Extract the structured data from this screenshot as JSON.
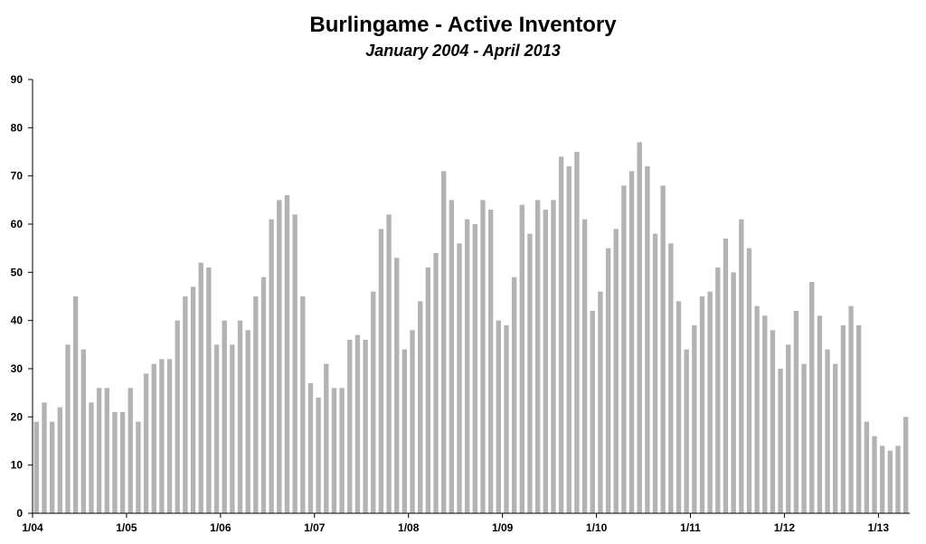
{
  "chart_data": {
    "type": "bar",
    "title": "Burlingame - Active Inventory",
    "subtitle": "January 2004 - April 2013",
    "xlabel": "",
    "ylabel": "",
    "ylim": [
      0,
      90
    ],
    "yticks": [
      0,
      10,
      20,
      30,
      40,
      50,
      60,
      70,
      80,
      90
    ],
    "xtick_labels": [
      "1/04",
      "1/05",
      "1/06",
      "1/07",
      "1/08",
      "1/09",
      "1/10",
      "1/11",
      "1/12",
      "1/13"
    ],
    "bar_color": "#b3b3b3",
    "grid": false,
    "legend": "none",
    "categories": [
      "1/04",
      "2/04",
      "3/04",
      "4/04",
      "5/04",
      "6/04",
      "7/04",
      "8/04",
      "9/04",
      "10/04",
      "11/04",
      "12/04",
      "1/05",
      "2/05",
      "3/05",
      "4/05",
      "5/05",
      "6/05",
      "7/05",
      "8/05",
      "9/05",
      "10/05",
      "11/05",
      "12/05",
      "1/06",
      "2/06",
      "3/06",
      "4/06",
      "5/06",
      "6/06",
      "7/06",
      "8/06",
      "9/06",
      "10/06",
      "11/06",
      "12/06",
      "1/07",
      "2/07",
      "3/07",
      "4/07",
      "5/07",
      "6/07",
      "7/07",
      "8/07",
      "9/07",
      "10/07",
      "11/07",
      "12/07",
      "1/08",
      "2/08",
      "3/08",
      "4/08",
      "5/08",
      "6/08",
      "7/08",
      "8/08",
      "9/08",
      "10/08",
      "11/08",
      "12/08",
      "1/09",
      "2/09",
      "3/09",
      "4/09",
      "5/09",
      "6/09",
      "7/09",
      "8/09",
      "9/09",
      "10/09",
      "11/09",
      "12/09",
      "1/10",
      "2/10",
      "3/10",
      "4/10",
      "5/10",
      "6/10",
      "7/10",
      "8/10",
      "9/10",
      "10/10",
      "11/10",
      "12/10",
      "1/11",
      "2/11",
      "3/11",
      "4/11",
      "5/11",
      "6/11",
      "7/11",
      "8/11",
      "9/11",
      "10/11",
      "11/11",
      "12/11",
      "1/12",
      "2/12",
      "3/12",
      "4/12",
      "5/12",
      "6/12",
      "7/12",
      "8/12",
      "9/12",
      "10/12",
      "11/12",
      "12/12",
      "1/13",
      "2/13",
      "3/13",
      "4/13"
    ],
    "values": [
      19,
      23,
      19,
      22,
      35,
      45,
      34,
      23,
      26,
      26,
      21,
      21,
      26,
      19,
      29,
      31,
      32,
      32,
      40,
      45,
      47,
      52,
      51,
      35,
      40,
      35,
      40,
      38,
      45,
      49,
      61,
      65,
      66,
      62,
      45,
      27,
      24,
      31,
      26,
      26,
      36,
      37,
      36,
      46,
      59,
      62,
      53,
      34,
      38,
      44,
      51,
      54,
      71,
      65,
      56,
      61,
      60,
      65,
      63,
      40,
      39,
      49,
      64,
      58,
      65,
      63,
      65,
      74,
      72,
      75,
      61,
      42,
      46,
      55,
      59,
      68,
      71,
      77,
      72,
      58,
      68,
      56,
      44,
      34,
      39,
      45,
      46,
      51,
      57,
      50,
      61,
      55,
      43,
      41,
      38,
      30,
      35,
      42,
      31,
      48,
      41,
      34,
      31,
      39,
      43,
      39,
      19,
      16,
      14,
      13,
      14,
      20
    ]
  }
}
